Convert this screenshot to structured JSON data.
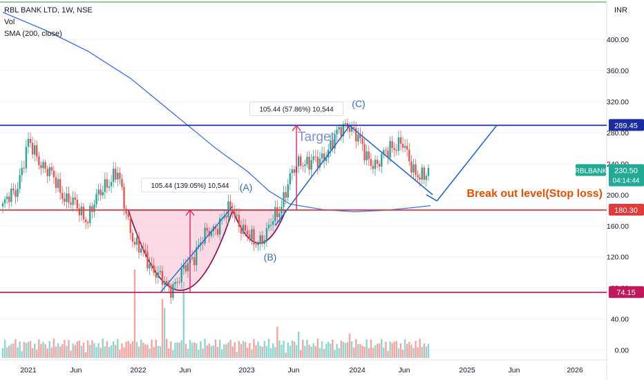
{
  "header": {
    "title": "RBL BANK LTD, 1W, NSE",
    "vol_label": "Vol",
    "sma_label": "SMA (200, close)",
    "currency": "INR"
  },
  "chart_data": {
    "type": "candlestick",
    "symbol": "RBLBANK",
    "last_price": "230.50",
    "countdown": "04:14:44",
    "y_axis": {
      "ticks": [
        "0.00",
        "40.00",
        "80.00",
        "120.00",
        "160.00",
        "200.00",
        "240.00",
        "280.00",
        "320.00",
        "360.00",
        "400.00"
      ],
      "ylim": [
        -12,
        442
      ]
    },
    "x_axis": {
      "labels": [
        "2021",
        "Jun",
        "2022",
        "Jun",
        "2023",
        "Jun",
        "2024",
        "Jun",
        "2025",
        "Jun",
        "2026"
      ]
    },
    "horizontal_levels": [
      {
        "label": "289.45",
        "value": 289.45,
        "color": "#1a2ca3"
      },
      {
        "label": "180.30",
        "value": 180.3,
        "color": "#e23b3b"
      },
      {
        "label": "74.15",
        "value": 74.15,
        "color": "#c2185b"
      }
    ],
    "annotations": {
      "target": "Target",
      "breakout": "Break out level(Stop loss)",
      "point_a": "(A)",
      "point_b": "(B)",
      "point_c": "(C)",
      "measure_1": "105.44 (139.05%) 10,544",
      "measure_2": "105.44 (57.86%) 10,544"
    },
    "price_anchors": [
      {
        "t": 0,
        "close": 185
      },
      {
        "t": 6,
        "close": 205
      },
      {
        "t": 12,
        "close": 265
      },
      {
        "t": 20,
        "close": 235
      },
      {
        "t": 30,
        "close": 195
      },
      {
        "t": 40,
        "close": 170
      },
      {
        "t": 48,
        "close": 215
      },
      {
        "t": 54,
        "close": 225
      },
      {
        "t": 58,
        "close": 180
      },
      {
        "t": 62,
        "close": 135
      },
      {
        "t": 68,
        "close": 118
      },
      {
        "t": 74,
        "close": 90
      },
      {
        "t": 78,
        "close": 80
      },
      {
        "t": 84,
        "close": 95
      },
      {
        "t": 92,
        "close": 135
      },
      {
        "t": 100,
        "close": 160
      },
      {
        "t": 108,
        "close": 182
      },
      {
        "t": 114,
        "close": 150
      },
      {
        "t": 118,
        "close": 138
      },
      {
        "t": 124,
        "close": 150
      },
      {
        "t": 130,
        "close": 182
      },
      {
        "t": 134,
        "close": 215
      },
      {
        "t": 140,
        "close": 245
      },
      {
        "t": 148,
        "close": 240
      },
      {
        "t": 156,
        "close": 272
      },
      {
        "t": 162,
        "close": 295
      },
      {
        "t": 170,
        "close": 255
      },
      {
        "t": 176,
        "close": 235
      },
      {
        "t": 182,
        "close": 265
      },
      {
        "t": 188,
        "close": 262
      },
      {
        "t": 194,
        "close": 230
      },
      {
        "t": 198,
        "close": 218
      },
      {
        "t": 200,
        "close": 230.5
      }
    ],
    "sma_200": [
      {
        "t": 0,
        "v": 435
      },
      {
        "t": 20,
        "v": 412
      },
      {
        "t": 40,
        "v": 385
      },
      {
        "t": 60,
        "v": 350
      },
      {
        "t": 80,
        "v": 305
      },
      {
        "t": 100,
        "v": 260
      },
      {
        "t": 115,
        "v": 230
      },
      {
        "t": 125,
        "v": 205
      },
      {
        "t": 135,
        "v": 188
      },
      {
        "t": 150,
        "v": 181
      },
      {
        "t": 165,
        "v": 178
      },
      {
        "t": 180,
        "v": 180
      },
      {
        "t": 195,
        "v": 184
      },
      {
        "t": 201,
        "v": 186
      }
    ],
    "volume_note": "volume bars in bottom pane, relative heights"
  },
  "colors": {
    "up": "#26a69a",
    "down": "#ef5350",
    "sma": "#2962ff",
    "label_green": "#22ab94",
    "accent_green": "#4caf50",
    "target_pink": "#e91e63",
    "cup_fill": "#f8bbd0",
    "cup_stroke": "#8e1650",
    "pattern_blue": "#1e66d8",
    "breakout_orange": "#e65100"
  }
}
